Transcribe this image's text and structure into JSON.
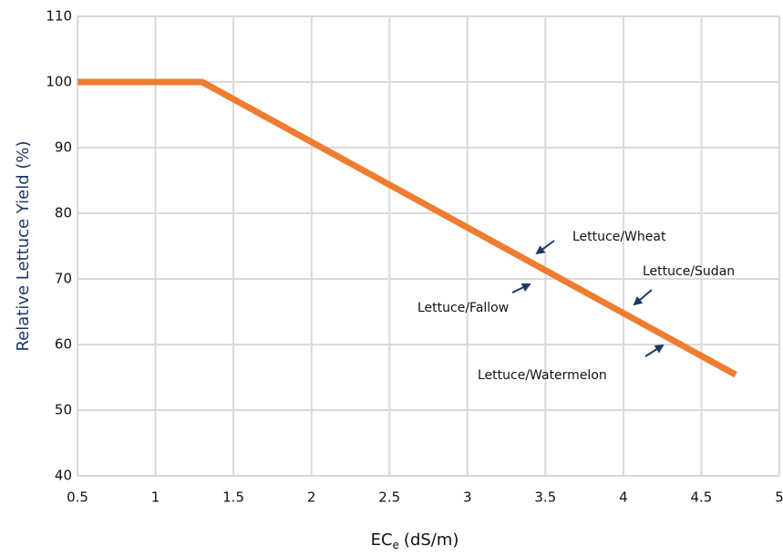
{
  "chart_data": {
    "type": "line",
    "x_label": {
      "main": "EC",
      "subscript": "e",
      "unit": "(dS/m)"
    },
    "y_label": "Relative Lettuce Yield (%)",
    "x": [
      0.5,
      1.3,
      4.72
    ],
    "series": [
      {
        "values": [
          100,
          100,
          55.4
        ],
        "color": "#ee7d31"
      }
    ],
    "xlim": [
      0.5,
      5
    ],
    "xticks": [
      0.5,
      1,
      1.5,
      2,
      2.5,
      3,
      3.5,
      4,
      4.5,
      5
    ],
    "ylim": [
      40,
      110
    ],
    "yticks": [
      40,
      50,
      60,
      70,
      80,
      90,
      100,
      110
    ],
    "grid": true,
    "annotations": [
      "Lettuce/Wheat",
      "Lettuce/Fallow",
      "Lettuce/Sudan",
      "Lettuce/Watermelon"
    ]
  }
}
